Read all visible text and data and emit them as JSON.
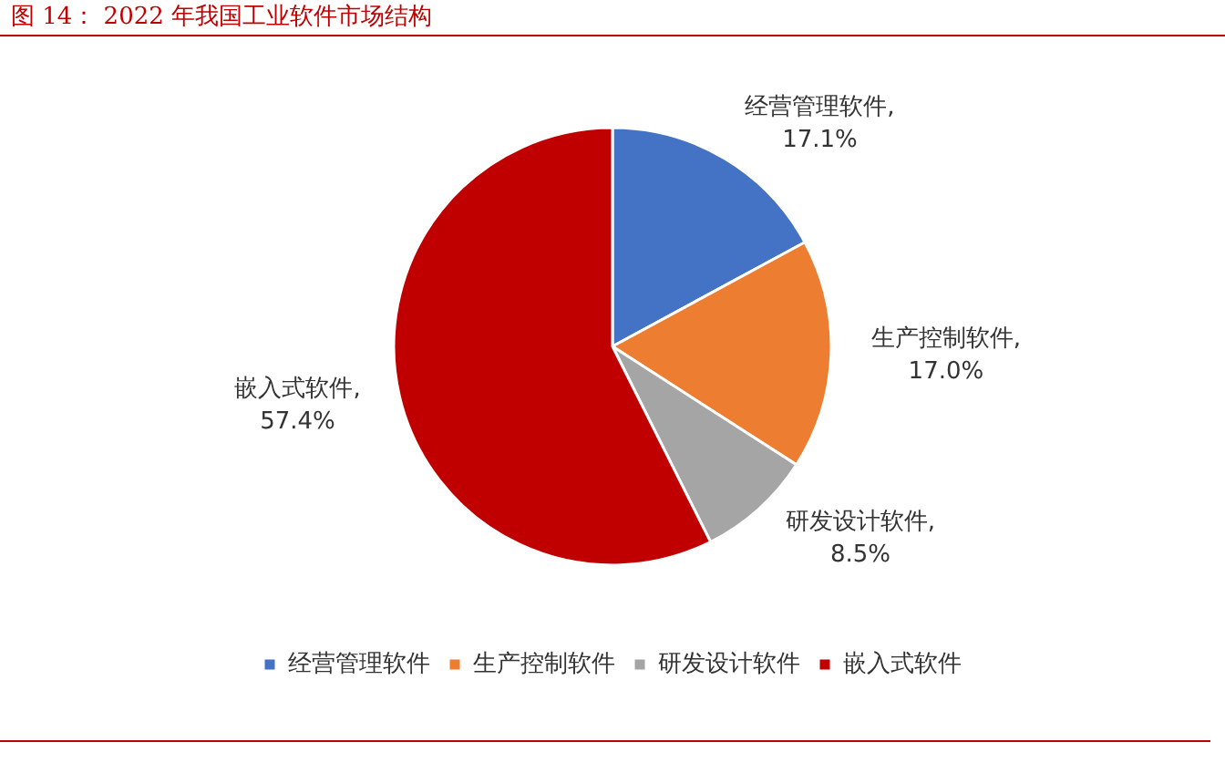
{
  "chart_data": {
    "type": "pie",
    "title": "图 14：  2022 年我国工业软件市场结构",
    "categories": [
      "经营管理软件",
      "生产控制软件",
      "研发设计软件",
      "嵌入式软件"
    ],
    "values": [
      17.1,
      17.0,
      8.5,
      57.4
    ],
    "colors": [
      "#4472c4",
      "#ed7d31",
      "#a5a5a5",
      "#c00000"
    ],
    "value_labels": [
      "经营管理软件,\n17.1%",
      "生产控制软件,\n17.0%",
      "研发设计软件,\n8.5%",
      "嵌入式软件,\n57.4%"
    ],
    "legend": "bottom"
  }
}
